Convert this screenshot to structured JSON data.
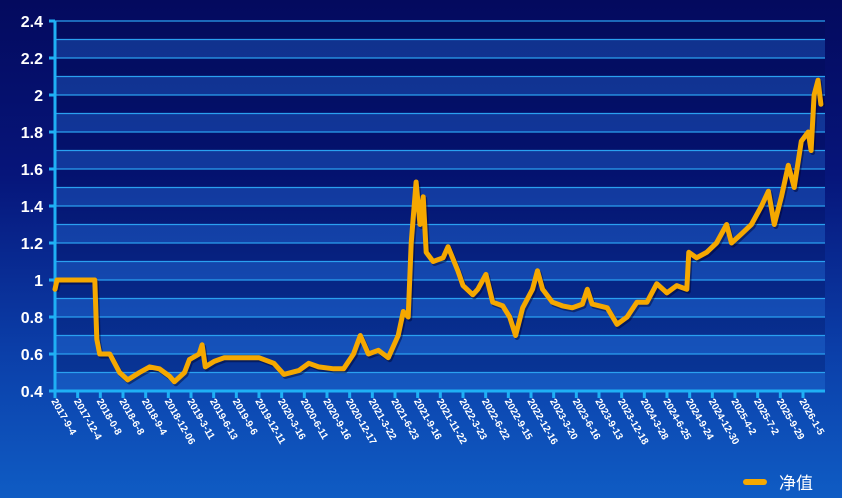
{
  "chart_data": {
    "type": "line",
    "title": "",
    "xlabel": "",
    "ylabel": "",
    "ylim": [
      0.4,
      2.4
    ],
    "yticks": [
      "0.4",
      "0.6",
      "0.8",
      "1",
      "1.2",
      "1.4",
      "1.6",
      "1.8",
      "2",
      "2.2",
      "2.4"
    ],
    "grid": true,
    "legend_position": "bottom-right",
    "x_tick_labels": [
      "2017-9-4",
      "2017-12-4",
      "2018-0-8",
      "2018-6-8",
      "2018-9-4",
      "2018-12-06",
      "2019-3-11",
      "2019-6-13",
      "2019-9-6",
      "2019-12-11",
      "2020-3-16",
      "2020-6-11",
      "2020-9-16",
      "2020-12-17",
      "2021-3-22",
      "2021-6-23",
      "2021-9-16",
      "2021-11-22",
      "2022-3-23",
      "2022-6-22",
      "2022-9-15",
      "2022-12-16",
      "2023-3-20",
      "2023-6-16",
      "2023-9-13",
      "2023-12-18",
      "2024-3-28",
      "2024-6-25",
      "2024-9-24",
      "2024-12-30",
      "2025-4-2",
      "2025-7-2",
      "2025-9-29",
      "2026-1-5"
    ],
    "series": [
      {
        "name": "净值",
        "color": "#f5a800",
        "points": [
          [
            "2017-09-04",
            0.95
          ],
          [
            "2017-09-12",
            1.0
          ],
          [
            "2018-02-13",
            1.0
          ],
          [
            "2018-02-21",
            0.68
          ],
          [
            "2018-03-05",
            0.6
          ],
          [
            "2018-04-15",
            0.6
          ],
          [
            "2018-05-25",
            0.5
          ],
          [
            "2018-06-27",
            0.46
          ],
          [
            "2018-08-14",
            0.5
          ],
          [
            "2018-09-24",
            0.53
          ],
          [
            "2018-11-03",
            0.52
          ],
          [
            "2018-12-14",
            0.48
          ],
          [
            "2019-01-03",
            0.45
          ],
          [
            "2019-02-13",
            0.5
          ],
          [
            "2019-03-05",
            0.57
          ],
          [
            "2019-04-14",
            0.6
          ],
          [
            "2019-04-26",
            0.65
          ],
          [
            "2019-05-09",
            0.53
          ],
          [
            "2019-06-14",
            0.56
          ],
          [
            "2019-07-25",
            0.58
          ],
          [
            "2019-09-23",
            0.58
          ],
          [
            "2019-12-13",
            0.58
          ],
          [
            "2020-02-12",
            0.55
          ],
          [
            "2020-03-24",
            0.49
          ],
          [
            "2020-05-23",
            0.51
          ],
          [
            "2020-07-03",
            0.55
          ],
          [
            "2020-08-12",
            0.53
          ],
          [
            "2020-10-12",
            0.52
          ],
          [
            "2020-11-22",
            0.52
          ],
          [
            "2021-01-01",
            0.6
          ],
          [
            "2021-01-29",
            0.7
          ],
          [
            "2021-03-03",
            0.6
          ],
          [
            "2021-04-12",
            0.62
          ],
          [
            "2021-05-23",
            0.58
          ],
          [
            "2021-07-02",
            0.7
          ],
          [
            "2021-07-23",
            0.83
          ],
          [
            "2021-08-12",
            0.8
          ],
          [
            "2021-08-24",
            1.2
          ],
          [
            "2021-09-13",
            1.53
          ],
          [
            "2021-09-29",
            1.3
          ],
          [
            "2021-10-12",
            1.45
          ],
          [
            "2021-10-24",
            1.15
          ],
          [
            "2021-11-21",
            1.1
          ],
          [
            "2022-01-01",
            1.12
          ],
          [
            "2022-01-21",
            1.18
          ],
          [
            "2022-03-02",
            1.05
          ],
          [
            "2022-03-23",
            0.97
          ],
          [
            "2022-05-02",
            0.92
          ],
          [
            "2022-05-22",
            0.95
          ],
          [
            "2022-06-24",
            1.03
          ],
          [
            "2022-07-22",
            0.88
          ],
          [
            "2022-09-01",
            0.86
          ],
          [
            "2022-09-29",
            0.8
          ],
          [
            "2022-10-23",
            0.7
          ],
          [
            "2022-11-21",
            0.85
          ],
          [
            "2022-12-31",
            0.95
          ],
          [
            "2023-01-20",
            1.05
          ],
          [
            "2023-02-10",
            0.95
          ],
          [
            "2023-03-22",
            0.88
          ],
          [
            "2023-05-02",
            0.86
          ],
          [
            "2023-06-11",
            0.85
          ],
          [
            "2023-07-22",
            0.87
          ],
          [
            "2023-08-11",
            0.95
          ],
          [
            "2023-08-31",
            0.87
          ],
          [
            "2023-10-31",
            0.85
          ],
          [
            "2023-12-10",
            0.76
          ],
          [
            "2024-01-20",
            0.8
          ],
          [
            "2024-02-29",
            0.88
          ],
          [
            "2024-04-10",
            0.88
          ],
          [
            "2024-05-20",
            0.98
          ],
          [
            "2024-06-30",
            0.93
          ],
          [
            "2024-08-09",
            0.97
          ],
          [
            "2024-09-19",
            0.95
          ],
          [
            "2024-09-27",
            1.15
          ],
          [
            "2024-10-29",
            1.12
          ],
          [
            "2024-12-09",
            1.15
          ],
          [
            "2025-01-18",
            1.2
          ],
          [
            "2025-02-28",
            1.3
          ],
          [
            "2025-03-20",
            1.2
          ],
          [
            "2025-04-30",
            1.25
          ],
          [
            "2025-06-09",
            1.3
          ],
          [
            "2025-07-20",
            1.4
          ],
          [
            "2025-08-17",
            1.48
          ],
          [
            "2025-09-10",
            1.3
          ],
          [
            "2025-10-09",
            1.45
          ],
          [
            "2025-11-06",
            1.62
          ],
          [
            "2025-11-30",
            1.5
          ],
          [
            "2025-12-29",
            1.75
          ],
          [
            "2026-01-26",
            1.8
          ],
          [
            "2026-02-07",
            1.7
          ],
          [
            "2026-02-19",
            2.0
          ],
          [
            "2026-03-07",
            2.08
          ],
          [
            "2026-03-19",
            1.95
          ]
        ]
      }
    ]
  },
  "legend": {
    "label": "净值"
  }
}
